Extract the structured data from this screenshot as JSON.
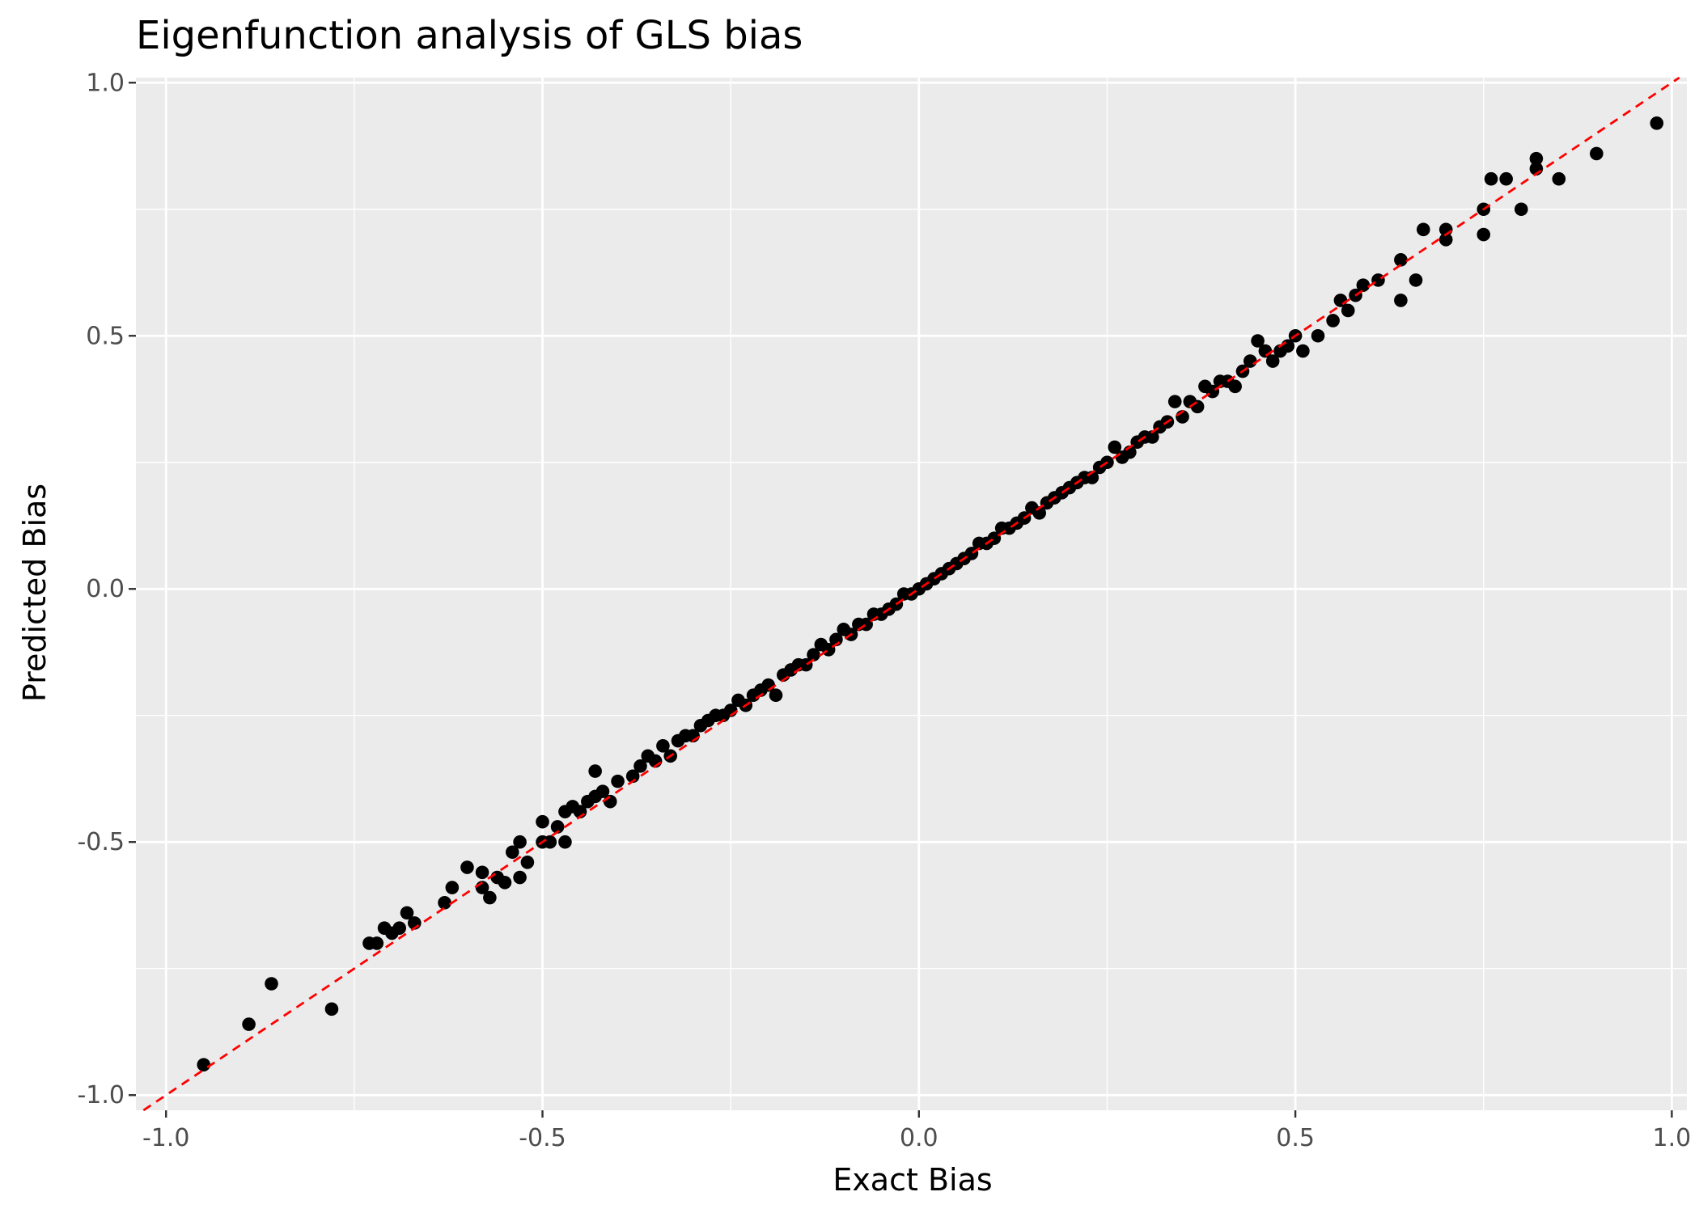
{
  "chart_data": {
    "type": "scatter",
    "title": "Eigenfunction analysis of GLS bias",
    "xlabel": "Exact Bias",
    "ylabel": "Predicted Bias",
    "xlim": [
      -1.04,
      1.02
    ],
    "ylim": [
      -1.03,
      1.01
    ],
    "x_ticks": [
      -1.0,
      -0.5,
      0.0,
      0.5,
      1.0
    ],
    "x_tick_labels": [
      "-1.0",
      "-0.5",
      "0.0",
      "0.5",
      "1.0"
    ],
    "y_ticks": [
      -1.0,
      -0.5,
      0.0,
      0.5,
      1.0
    ],
    "y_tick_labels": [
      "-1.0",
      "-0.5",
      "0.0",
      "0.5",
      "1.0"
    ],
    "grid": true,
    "legend": "none",
    "colors": {
      "panel": "#ebebeb",
      "grid": "#ffffff",
      "points": "#000000",
      "reference_line": "#ff0000"
    },
    "reference_line": {
      "slope": 1,
      "intercept": 0,
      "style": "dashed"
    },
    "series": [
      {
        "points": [
          [
            -0.95,
            -0.94
          ],
          [
            -0.89,
            -0.86
          ],
          [
            -0.86,
            -0.78
          ],
          [
            -0.78,
            -0.83
          ],
          [
            -0.73,
            -0.7
          ],
          [
            -0.72,
            -0.7
          ],
          [
            -0.71,
            -0.67
          ],
          [
            -0.7,
            -0.68
          ],
          [
            -0.69,
            -0.67
          ],
          [
            -0.68,
            -0.64
          ],
          [
            -0.67,
            -0.66
          ],
          [
            -0.63,
            -0.62
          ],
          [
            -0.62,
            -0.59
          ],
          [
            -0.6,
            -0.55
          ],
          [
            -0.58,
            -0.56
          ],
          [
            -0.58,
            -0.59
          ],
          [
            -0.57,
            -0.61
          ],
          [
            -0.56,
            -0.57
          ],
          [
            -0.55,
            -0.58
          ],
          [
            -0.54,
            -0.52
          ],
          [
            -0.53,
            -0.5
          ],
          [
            -0.53,
            -0.57
          ],
          [
            -0.52,
            -0.54
          ],
          [
            -0.5,
            -0.46
          ],
          [
            -0.5,
            -0.5
          ],
          [
            -0.49,
            -0.5
          ],
          [
            -0.48,
            -0.47
          ],
          [
            -0.47,
            -0.44
          ],
          [
            -0.47,
            -0.5
          ],
          [
            -0.46,
            -0.43
          ],
          [
            -0.45,
            -0.44
          ],
          [
            -0.44,
            -0.42
          ],
          [
            -0.43,
            -0.41
          ],
          [
            -0.43,
            -0.36
          ],
          [
            -0.42,
            -0.4
          ],
          [
            -0.41,
            -0.42
          ],
          [
            -0.4,
            -0.38
          ],
          [
            -0.38,
            -0.37
          ],
          [
            -0.37,
            -0.35
          ],
          [
            -0.36,
            -0.33
          ],
          [
            -0.35,
            -0.34
          ],
          [
            -0.34,
            -0.31
          ],
          [
            -0.33,
            -0.33
          ],
          [
            -0.32,
            -0.3
          ],
          [
            -0.31,
            -0.29
          ],
          [
            -0.3,
            -0.29
          ],
          [
            -0.29,
            -0.27
          ],
          [
            -0.28,
            -0.26
          ],
          [
            -0.27,
            -0.25
          ],
          [
            -0.26,
            -0.25
          ],
          [
            -0.25,
            -0.24
          ],
          [
            -0.24,
            -0.22
          ],
          [
            -0.23,
            -0.23
          ],
          [
            -0.22,
            -0.21
          ],
          [
            -0.21,
            -0.2
          ],
          [
            -0.2,
            -0.19
          ],
          [
            -0.19,
            -0.21
          ],
          [
            -0.18,
            -0.17
          ],
          [
            -0.17,
            -0.16
          ],
          [
            -0.16,
            -0.15
          ],
          [
            -0.15,
            -0.15
          ],
          [
            -0.14,
            -0.13
          ],
          [
            -0.13,
            -0.11
          ],
          [
            -0.12,
            -0.12
          ],
          [
            -0.11,
            -0.1
          ],
          [
            -0.1,
            -0.08
          ],
          [
            -0.09,
            -0.09
          ],
          [
            -0.08,
            -0.07
          ],
          [
            -0.07,
            -0.07
          ],
          [
            -0.06,
            -0.05
          ],
          [
            -0.05,
            -0.05
          ],
          [
            -0.04,
            -0.04
          ],
          [
            -0.03,
            -0.03
          ],
          [
            -0.02,
            -0.01
          ],
          [
            -0.01,
            -0.01
          ],
          [
            0.0,
            0.0
          ],
          [
            0.01,
            0.01
          ],
          [
            0.02,
            0.02
          ],
          [
            0.03,
            0.03
          ],
          [
            0.04,
            0.04
          ],
          [
            0.05,
            0.05
          ],
          [
            0.06,
            0.06
          ],
          [
            0.07,
            0.07
          ],
          [
            0.08,
            0.09
          ],
          [
            0.09,
            0.09
          ],
          [
            0.1,
            0.1
          ],
          [
            0.11,
            0.12
          ],
          [
            0.12,
            0.12
          ],
          [
            0.13,
            0.13
          ],
          [
            0.14,
            0.14
          ],
          [
            0.15,
            0.16
          ],
          [
            0.16,
            0.15
          ],
          [
            0.17,
            0.17
          ],
          [
            0.18,
            0.18
          ],
          [
            0.19,
            0.19
          ],
          [
            0.2,
            0.2
          ],
          [
            0.21,
            0.21
          ],
          [
            0.22,
            0.22
          ],
          [
            0.23,
            0.22
          ],
          [
            0.24,
            0.24
          ],
          [
            0.25,
            0.25
          ],
          [
            0.26,
            0.28
          ],
          [
            0.27,
            0.26
          ],
          [
            0.28,
            0.27
          ],
          [
            0.29,
            0.29
          ],
          [
            0.3,
            0.3
          ],
          [
            0.31,
            0.3
          ],
          [
            0.32,
            0.32
          ],
          [
            0.33,
            0.33
          ],
          [
            0.34,
            0.37
          ],
          [
            0.35,
            0.34
          ],
          [
            0.36,
            0.37
          ],
          [
            0.37,
            0.36
          ],
          [
            0.38,
            0.4
          ],
          [
            0.39,
            0.39
          ],
          [
            0.4,
            0.41
          ],
          [
            0.41,
            0.41
          ],
          [
            0.42,
            0.4
          ],
          [
            0.43,
            0.43
          ],
          [
            0.44,
            0.45
          ],
          [
            0.45,
            0.49
          ],
          [
            0.46,
            0.47
          ],
          [
            0.47,
            0.45
          ],
          [
            0.48,
            0.47
          ],
          [
            0.49,
            0.48
          ],
          [
            0.5,
            0.5
          ],
          [
            0.51,
            0.47
          ],
          [
            0.53,
            0.5
          ],
          [
            0.55,
            0.53
          ],
          [
            0.56,
            0.57
          ],
          [
            0.57,
            0.55
          ],
          [
            0.58,
            0.58
          ],
          [
            0.59,
            0.6
          ],
          [
            0.61,
            0.61
          ],
          [
            0.64,
            0.65
          ],
          [
            0.64,
            0.57
          ],
          [
            0.66,
            0.61
          ],
          [
            0.67,
            0.71
          ],
          [
            0.7,
            0.69
          ],
          [
            0.7,
            0.71
          ],
          [
            0.75,
            0.75
          ],
          [
            0.75,
            0.7
          ],
          [
            0.76,
            0.81
          ],
          [
            0.78,
            0.81
          ],
          [
            0.8,
            0.75
          ],
          [
            0.82,
            0.83
          ],
          [
            0.82,
            0.85
          ],
          [
            0.85,
            0.81
          ],
          [
            0.9,
            0.86
          ],
          [
            0.98,
            0.92
          ]
        ]
      }
    ]
  }
}
